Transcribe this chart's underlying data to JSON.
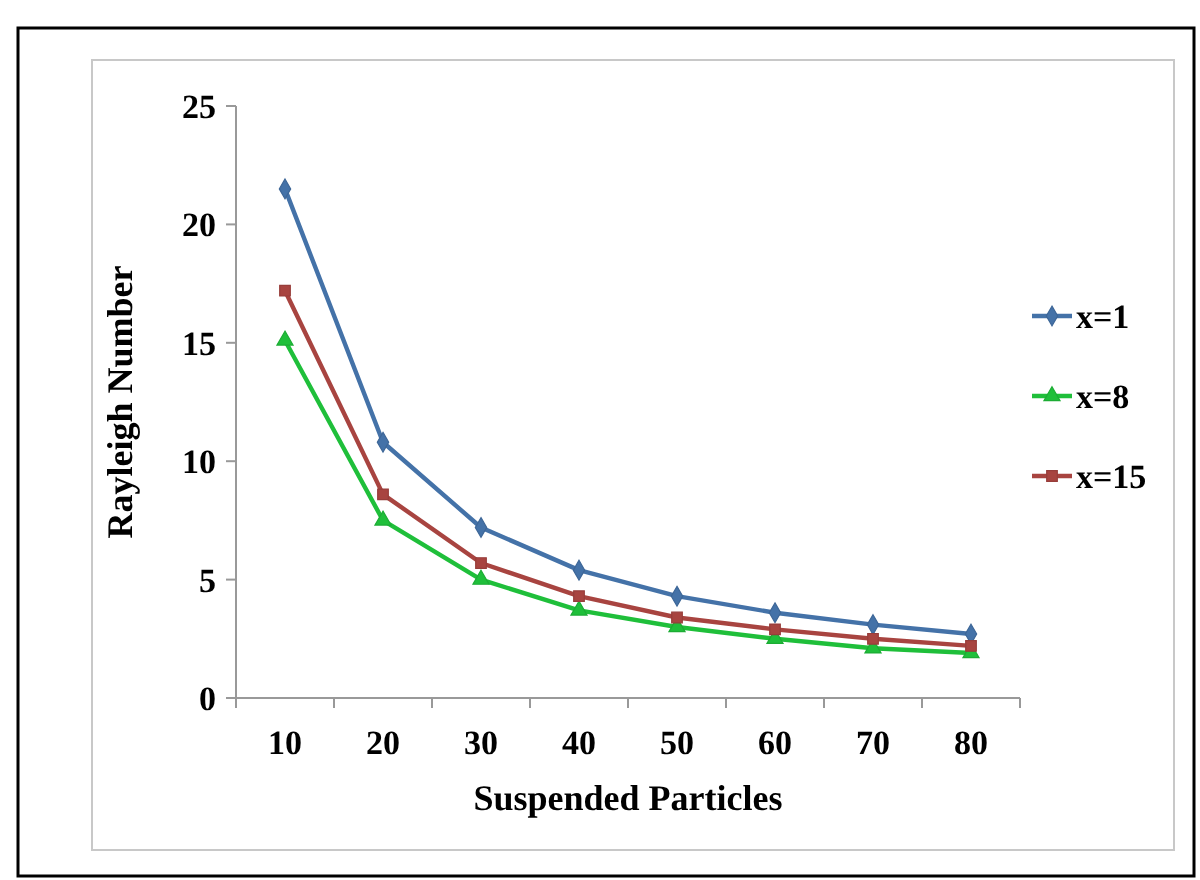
{
  "chart_data": {
    "type": "line",
    "xlabel": "Suspended Particles",
    "ylabel": "Rayleigh Number",
    "categories": [
      "10",
      "20",
      "30",
      "40",
      "50",
      "60",
      "70",
      "80"
    ],
    "ylim": [
      0,
      25
    ],
    "yticks": [
      0,
      5,
      10,
      15,
      20,
      25
    ],
    "grid": false,
    "legend": "right",
    "series": [
      {
        "name": "x=1",
        "color": "#4472a8",
        "marker": "diamond",
        "values": [
          21.5,
          10.8,
          7.2,
          5.4,
          4.3,
          3.6,
          3.1,
          2.7
        ]
      },
      {
        "name": "x=8",
        "color": "#1fbf3a",
        "marker": "triangle",
        "values": [
          15.1,
          7.5,
          5.0,
          3.7,
          3.0,
          2.5,
          2.1,
          1.9
        ]
      },
      {
        "name": "x=15",
        "color": "#a84440",
        "marker": "square",
        "values": [
          17.2,
          8.6,
          5.7,
          4.3,
          3.4,
          2.9,
          2.5,
          2.2
        ]
      }
    ]
  }
}
